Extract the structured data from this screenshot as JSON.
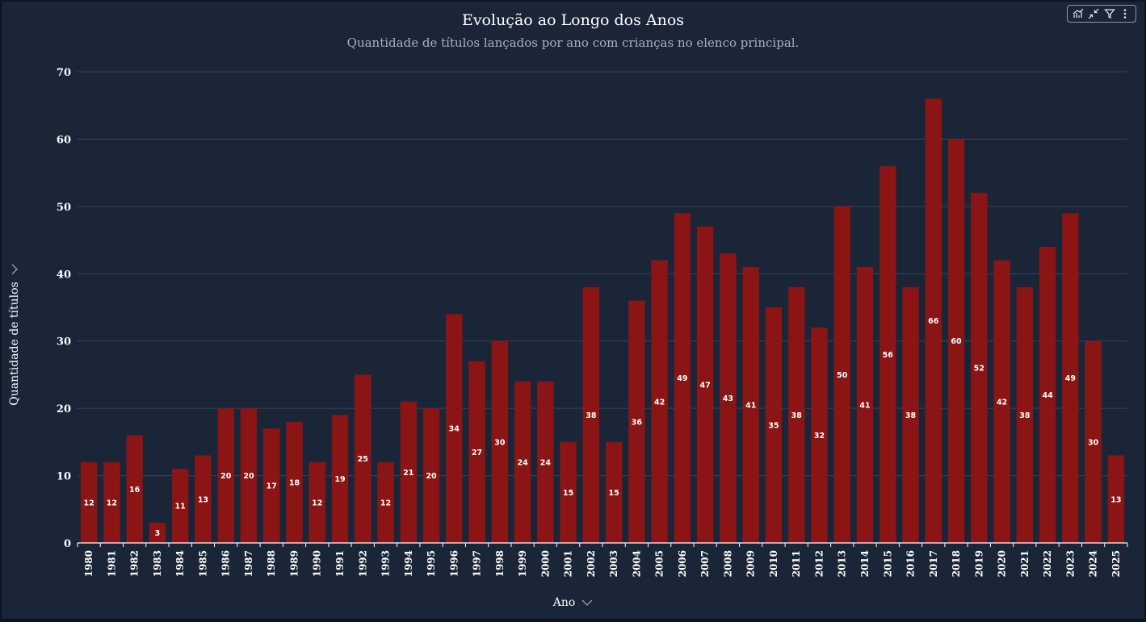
{
  "chart_data": {
    "type": "bar",
    "title": "Evolução ao Longo dos Anos",
    "subtitle": "Quantidade de títulos lançados por ano com crianças no elenco principal.",
    "xlabel": "Ano",
    "ylabel": "Quantidade de títulos",
    "ylim": [
      0,
      70
    ],
    "yticks": [
      0,
      10,
      20,
      30,
      40,
      50,
      60,
      70
    ],
    "grid": true,
    "data_labels": true,
    "bar_color": "#8b1515",
    "categories": [
      "1980",
      "1981",
      "1982",
      "1983",
      "1984",
      "1985",
      "1986",
      "1987",
      "1988",
      "1989",
      "1990",
      "1991",
      "1992",
      "1993",
      "1994",
      "1995",
      "1996",
      "1997",
      "1998",
      "1999",
      "2000",
      "2001",
      "2002",
      "2003",
      "2004",
      "2005",
      "2006",
      "2007",
      "2008",
      "2009",
      "2010",
      "2011",
      "2012",
      "2013",
      "2014",
      "2015",
      "2016",
      "2017",
      "2018",
      "2019",
      "2020",
      "2021",
      "2022",
      "2023",
      "2024",
      "2025"
    ],
    "values": [
      12,
      12,
      16,
      3,
      11,
      13,
      20,
      20,
      17,
      18,
      12,
      19,
      25,
      12,
      21,
      20,
      34,
      27,
      30,
      24,
      24,
      15,
      38,
      15,
      36,
      42,
      49,
      47,
      43,
      41,
      35,
      38,
      32,
      50,
      41,
      56,
      38,
      66,
      60,
      52,
      42,
      38,
      44,
      49,
      30,
      13
    ]
  },
  "colors": {
    "background": "#1b2538",
    "grid": "#3a4456",
    "bar": "#8b1515",
    "text": "#ffffff"
  },
  "toolbar": {
    "icons": [
      "chart-settings-icon",
      "collapse-icon",
      "filter-icon",
      "more-options-icon"
    ]
  }
}
